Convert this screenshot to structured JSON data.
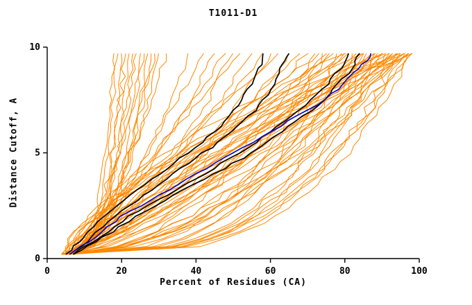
{
  "chart_data": {
    "type": "line",
    "title": "T1011-D1",
    "xlabel": "Percent of Residues (CA)",
    "ylabel": "Distance Cutoff, A",
    "xlim": [
      0,
      100
    ],
    "ylim": [
      0,
      10
    ],
    "x_ticks": [
      0,
      20,
      40,
      60,
      80,
      100
    ],
    "y_ticks": [
      0,
      5,
      10
    ],
    "grid": false,
    "legend": "none",
    "colors": {
      "background": "#ffffff",
      "axis": "#000000",
      "ensemble": "#ff8800",
      "highlight": "#000000",
      "reference": "#0000cc"
    },
    "series": [
      {
        "name": "highlight-model-1",
        "color": "#000000",
        "width": 1.7,
        "points": [
          [
            5,
            0.2
          ],
          [
            10,
            1
          ],
          [
            15,
            2
          ],
          [
            22,
            3
          ],
          [
            30,
            4
          ],
          [
            38,
            5
          ],
          [
            45,
            6
          ],
          [
            50,
            7
          ],
          [
            54,
            8
          ],
          [
            57,
            9
          ],
          [
            58,
            9.7
          ]
        ]
      },
      {
        "name": "highlight-model-2",
        "color": "#000000",
        "width": 1.7,
        "points": [
          [
            6,
            0.2
          ],
          [
            12,
            1
          ],
          [
            18,
            2
          ],
          [
            26,
            3
          ],
          [
            34,
            4
          ],
          [
            42,
            5
          ],
          [
            50,
            6
          ],
          [
            56,
            7
          ],
          [
            60,
            8
          ],
          [
            63,
            9
          ],
          [
            65,
            9.7
          ]
        ]
      },
      {
        "name": "highlight-model-3",
        "color": "#000000",
        "width": 1.7,
        "points": [
          [
            7,
            0.2
          ],
          [
            14,
            1
          ],
          [
            22,
            2
          ],
          [
            32,
            3
          ],
          [
            42,
            4
          ],
          [
            52,
            5
          ],
          [
            60,
            6
          ],
          [
            68,
            7
          ],
          [
            74,
            8
          ],
          [
            79,
            9
          ],
          [
            81,
            9.7
          ]
        ]
      },
      {
        "name": "highlight-model-4",
        "color": "#000000",
        "width": 1.7,
        "points": [
          [
            7,
            0.2
          ],
          [
            15,
            1
          ],
          [
            24,
            2
          ],
          [
            34,
            3
          ],
          [
            45,
            4
          ],
          [
            55,
            5
          ],
          [
            63,
            6
          ],
          [
            71,
            7
          ],
          [
            77,
            8
          ],
          [
            82,
            9
          ],
          [
            84,
            9.7
          ]
        ]
      },
      {
        "name": "reference-model-blue",
        "color": "#0000cc",
        "width": 1.6,
        "points": [
          [
            6,
            0.2
          ],
          [
            13,
            1
          ],
          [
            20,
            2
          ],
          [
            30,
            3
          ],
          [
            40,
            4
          ],
          [
            50,
            5
          ],
          [
            60,
            6
          ],
          [
            70,
            7
          ],
          [
            78,
            8
          ],
          [
            84,
            9
          ],
          [
            87,
            9.7
          ]
        ]
      }
    ],
    "ensemble": {
      "description": "orange prediction curves, parametrized [x_start, x_end, shape_exponent, wiggle]",
      "color": "#ff8800",
      "width": 1,
      "y_start": 0.2,
      "y_end": 9.7,
      "curves": [
        [
          4,
          18,
          0.28,
          1.2
        ],
        [
          5,
          19,
          0.32,
          1.5
        ],
        [
          4,
          20,
          0.25,
          1.0
        ],
        [
          6,
          21,
          0.4,
          1.8
        ],
        [
          5,
          22,
          0.3,
          1.3
        ],
        [
          4,
          23,
          0.35,
          1.6
        ],
        [
          6,
          24,
          0.45,
          1.2
        ],
        [
          5,
          25,
          0.33,
          1.4
        ],
        [
          4,
          26,
          0.5,
          1.7
        ],
        [
          6,
          27,
          0.38,
          1.2
        ],
        [
          5,
          28,
          0.42,
          1.5
        ],
        [
          7,
          29,
          0.55,
          1.8
        ],
        [
          6,
          30,
          0.48,
          1.3
        ],
        [
          5,
          32,
          0.6,
          1.6
        ],
        [
          5,
          38,
          0.6,
          2
        ],
        [
          6,
          42,
          0.8,
          2.2
        ],
        [
          5,
          45,
          0.7,
          1.8
        ],
        [
          7,
          48,
          0.9,
          2
        ],
        [
          6,
          50,
          0.65,
          2.4
        ],
        [
          5,
          52,
          1,
          1.9
        ],
        [
          7,
          55,
          0.75,
          2.1
        ],
        [
          6,
          58,
          0.85,
          2.3
        ],
        [
          5,
          60,
          0.6,
          2
        ],
        [
          7,
          62,
          1.1,
          2.2
        ],
        [
          6,
          65,
          0.7,
          1.8
        ],
        [
          5,
          68,
          0.9,
          2
        ],
        [
          4,
          74,
          0.35,
          2.2
        ],
        [
          5,
          78,
          0.33,
          2.5
        ],
        [
          6,
          82,
          0.36,
          2.8
        ],
        [
          4,
          85,
          0.3,
          2.4
        ],
        [
          5,
          88,
          0.34,
          2.6
        ],
        [
          6,
          90,
          0.32,
          2.9
        ],
        [
          7,
          92,
          0.35,
          2.3
        ],
        [
          4,
          94,
          0.3,
          2.7
        ],
        [
          5,
          96,
          0.33,
          2.5
        ],
        [
          6,
          97,
          0.35,
          2.2
        ],
        [
          5,
          98,
          0.3,
          2.6
        ],
        [
          5,
          72,
          0.55,
          2.4
        ],
        [
          6,
          76,
          0.52,
          2.6
        ],
        [
          4,
          80,
          0.58,
          2.3
        ],
        [
          7,
          84,
          0.55,
          2.8
        ],
        [
          5,
          87,
          0.5,
          2.5
        ],
        [
          6,
          89,
          0.57,
          2.7
        ],
        [
          4,
          91,
          0.53,
          2.4
        ],
        [
          7,
          93,
          0.55,
          2.9
        ],
        [
          5,
          95,
          0.5,
          2.3
        ],
        [
          6,
          96,
          0.56,
          2.6
        ],
        [
          4,
          98,
          0.52,
          2.8
        ],
        [
          5,
          70,
          0.8,
          2.5
        ],
        [
          6,
          75,
          0.78,
          2.7
        ],
        [
          7,
          79,
          0.82,
          2.4
        ],
        [
          4,
          83,
          0.8,
          2.8
        ],
        [
          5,
          86,
          0.76,
          2.6
        ],
        [
          6,
          88,
          0.84,
          2.3
        ],
        [
          7,
          90,
          0.8,
          2.9
        ],
        [
          4,
          92,
          0.78,
          2.5
        ],
        [
          5,
          94,
          0.82,
          2.7
        ],
        [
          6,
          96,
          0.8,
          2.4
        ],
        [
          7,
          97,
          0.76,
          2.6
        ],
        [
          5,
          73,
          1.1,
          2.6
        ],
        [
          6,
          77,
          1.05,
          2.8
        ],
        [
          7,
          81,
          1.15,
          2.4
        ],
        [
          4,
          85,
          1.1,
          2.7
        ],
        [
          5,
          88,
          1.05,
          2.5
        ],
        [
          6,
          91,
          1.12,
          2.9
        ],
        [
          7,
          93,
          1.08,
          2.6
        ],
        [
          4,
          95,
          1.15,
          2.4
        ],
        [
          5,
          97,
          1.1,
          2.8
        ],
        [
          6,
          98,
          1.05,
          2.5
        ],
        [
          5,
          80,
          1.5,
          2.7
        ],
        [
          6,
          85,
          1.45,
          2.5
        ],
        [
          7,
          90,
          1.55,
          2.8
        ],
        [
          4,
          94,
          1.5,
          2.6
        ],
        [
          5,
          96,
          1.4,
          2.4
        ],
        [
          6,
          98,
          1.5,
          2.7
        ]
      ]
    }
  }
}
